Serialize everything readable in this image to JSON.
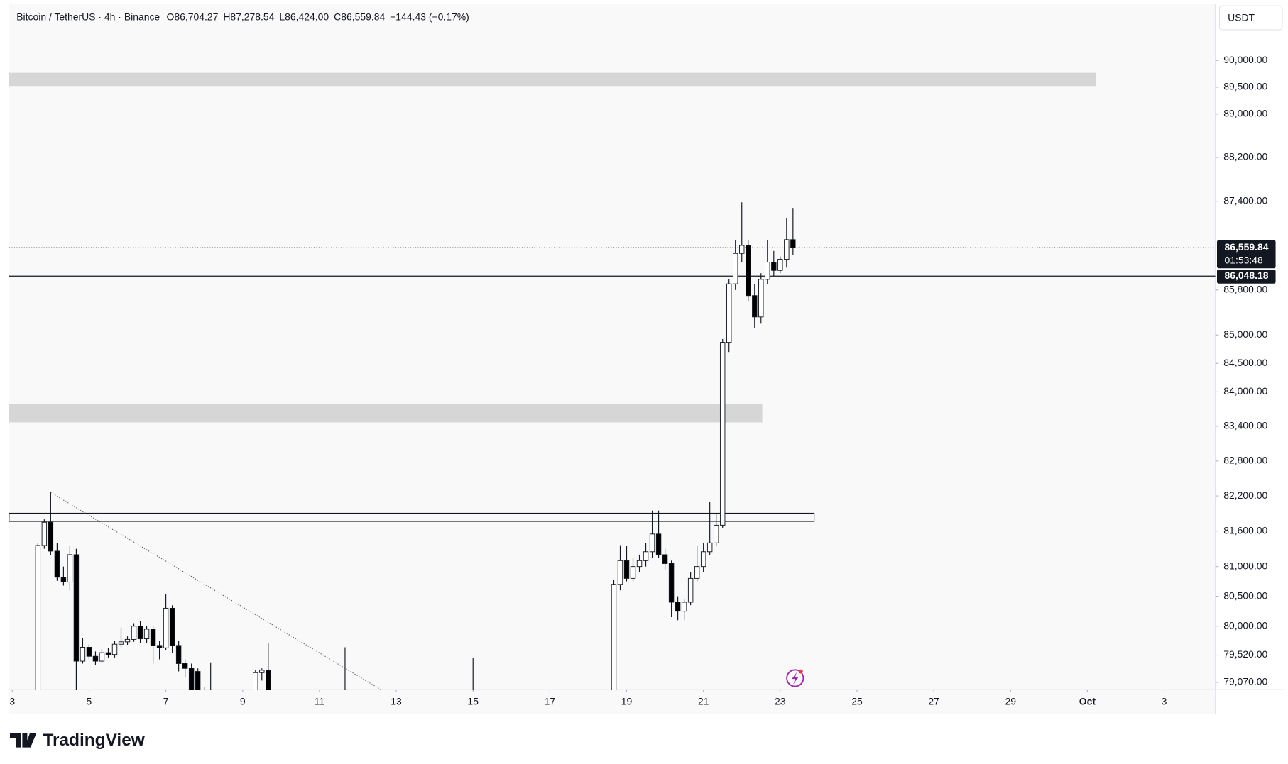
{
  "chart_data": {
    "type": "candlestick",
    "title": "Bitcoin / TetherUS · 4h · Binance",
    "ohlc_labels": [
      "O86,704.27",
      "H87,278.54",
      "L86,424.00",
      "C86,559.84",
      "−144.43 (−0.17%)"
    ],
    "currency": "USDT",
    "log": true,
    "grid": false,
    "up_color": "#ffffff",
    "down_color": "#000000",
    "ylim": [
      78950,
      91060
    ],
    "yticks": [
      {
        "value": 90000,
        "label": "90,000.00"
      },
      {
        "value": 89500,
        "label": "89,500.00"
      },
      {
        "value": 89000,
        "label": "89,000.00"
      },
      {
        "value": 88200,
        "label": "88,200.00"
      },
      {
        "value": 87400,
        "label": "87,400.00"
      },
      {
        "value": 85800,
        "label": "85,800.00"
      },
      {
        "value": 85000,
        "label": "85,000.00"
      },
      {
        "value": 84500,
        "label": "84,500.00"
      },
      {
        "value": 84000,
        "label": "84,000.00"
      },
      {
        "value": 83400,
        "label": "83,400.00"
      },
      {
        "value": 82800,
        "label": "82,800.00"
      },
      {
        "value": 82200,
        "label": "82,200.00"
      },
      {
        "value": 81600,
        "label": "81,600.00"
      },
      {
        "value": 81000,
        "label": "81,000.00"
      },
      {
        "value": 80500,
        "label": "80,500.00"
      },
      {
        "value": 80000,
        "label": "80,000.00"
      },
      {
        "value": 79520,
        "label": "79,520.00"
      },
      {
        "value": 79070,
        "label": "79,070.00"
      }
    ],
    "xlim": [
      -0.5,
      188
    ],
    "xticks": [
      {
        "value": 0,
        "label": "3"
      },
      {
        "value": 12,
        "label": "5"
      },
      {
        "value": 24,
        "label": "7"
      },
      {
        "value": 36,
        "label": "9"
      },
      {
        "value": 48,
        "label": "11"
      },
      {
        "value": 60,
        "label": "13"
      },
      {
        "value": 72,
        "label": "15"
      },
      {
        "value": 84,
        "label": "17"
      },
      {
        "value": 96,
        "label": "19"
      },
      {
        "value": 108,
        "label": "21"
      },
      {
        "value": 120,
        "label": "23"
      },
      {
        "value": 132,
        "label": "25"
      },
      {
        "value": 144,
        "label": "27"
      },
      {
        "value": 156,
        "label": "29"
      },
      {
        "value": 168,
        "label": "Oct"
      },
      {
        "value": 180,
        "label": "3"
      }
    ],
    "x": [
      4,
      5,
      6,
      7,
      8,
      9,
      10,
      11,
      12,
      13,
      14,
      15,
      16,
      17,
      18,
      19,
      20,
      21,
      22,
      23,
      24,
      25,
      26,
      27,
      28,
      29,
      30,
      31,
      38,
      39,
      40,
      52,
      72,
      94,
      95,
      96,
      97,
      98,
      99,
      100,
      101,
      102,
      103,
      104,
      105,
      106,
      107,
      108,
      109,
      110,
      111,
      112,
      113,
      114,
      115,
      116,
      117,
      118,
      119,
      120,
      121,
      122
    ],
    "open": [
      78500,
      81356,
      81750,
      81260,
      80820,
      80740,
      81200,
      79420,
      79650,
      79500,
      79420,
      79560,
      79530,
      79700,
      79740,
      79780,
      80000,
      79790,
      79950,
      79680,
      79640,
      80300,
      79680,
      79380,
      79300,
      79250,
      78800,
      78900,
      78700,
      79230,
      79270,
      78800,
      78700,
      78800,
      80700,
      81100,
      80800,
      81000,
      81100,
      81250,
      81550,
      81200,
      81050,
      80400,
      80250,
      80400,
      80800,
      81000,
      81250,
      81400,
      81700,
      84870,
      85910,
      86456,
      86600,
      85700,
      85320,
      85990,
      86300,
      86150,
      86350,
      86704.27
    ],
    "high": [
      81400,
      81800,
      82260,
      81400,
      81000,
      81350,
      81300,
      79800,
      79700,
      79580,
      79620,
      79640,
      79760,
      79980,
      79830,
      80050,
      80080,
      80000,
      80000,
      79750,
      80530,
      80350,
      79760,
      79450,
      79380,
      79300,
      78990,
      79400,
      79280,
      79300,
      79720,
      79650,
      79470,
      80770,
      81360,
      81350,
      81150,
      81200,
      81400,
      81950,
      81950,
      81300,
      81100,
      80500,
      80450,
      80900,
      81350,
      81400,
      82100,
      81900,
      84930,
      86000,
      86700,
      87380,
      86700,
      85900,
      86100,
      86700,
      86500,
      86400,
      87100,
      87278.54
    ],
    "low": [
      78400,
      81300,
      81200,
      80760,
      80680,
      80600,
      78800,
      79380,
      79450,
      79350,
      79400,
      79480,
      79480,
      79650,
      79690,
      79740,
      79720,
      79720,
      79380,
      79450,
      79600,
      79550,
      79250,
      79150,
      78700,
      78700,
      78600,
      78600,
      78600,
      79100,
      78700,
      78500,
      78500,
      78700,
      80600,
      80750,
      80750,
      80900,
      81000,
      81150,
      81150,
      80950,
      80150,
      80100,
      80100,
      80350,
      80750,
      80900,
      81200,
      81350,
      81650,
      84700,
      85800,
      86300,
      85600,
      85130,
      85200,
      85900,
      86050,
      86100,
      86200,
      86424
    ],
    "close": [
      81356,
      81750,
      81260,
      80820,
      80740,
      81200,
      79420,
      79650,
      79500,
      79420,
      79560,
      79530,
      79700,
      79740,
      79780,
      80000,
      79790,
      79950,
      79680,
      79640,
      80300,
      79680,
      79380,
      79300,
      78900,
      78800,
      78700,
      78700,
      79230,
      79270,
      78800,
      78700,
      78800,
      80700,
      81100,
      80800,
      81000,
      81100,
      81250,
      81550,
      81200,
      81050,
      80400,
      80250,
      80400,
      80800,
      81000,
      81250,
      81400,
      81700,
      84870,
      85910,
      86456,
      86600,
      85700,
      85320,
      85990,
      86300,
      86150,
      86350,
      86704.27,
      86559.84
    ],
    "last_price": {
      "value": 86559.84,
      "label": "86,559.84",
      "countdown": "01:53:48"
    },
    "level": {
      "value": 86048.18,
      "label": "86,048.18"
    },
    "zones": [
      {
        "x": [
          -0.5,
          169.3
        ],
        "y": [
          89522,
          89769
        ],
        "style": "fill"
      },
      {
        "x": [
          -0.5,
          117.2
        ],
        "y": [
          83467,
          83782
        ],
        "style": "fill"
      },
      {
        "x": [
          -0.5,
          125.3
        ],
        "y": [
          81765,
          81904
        ],
        "style": "outline"
      }
    ],
    "trendline": {
      "x": [
        6,
        60
      ],
      "y": [
        82260,
        78800
      ]
    }
  },
  "footer": {
    "brand": "TradingView"
  }
}
